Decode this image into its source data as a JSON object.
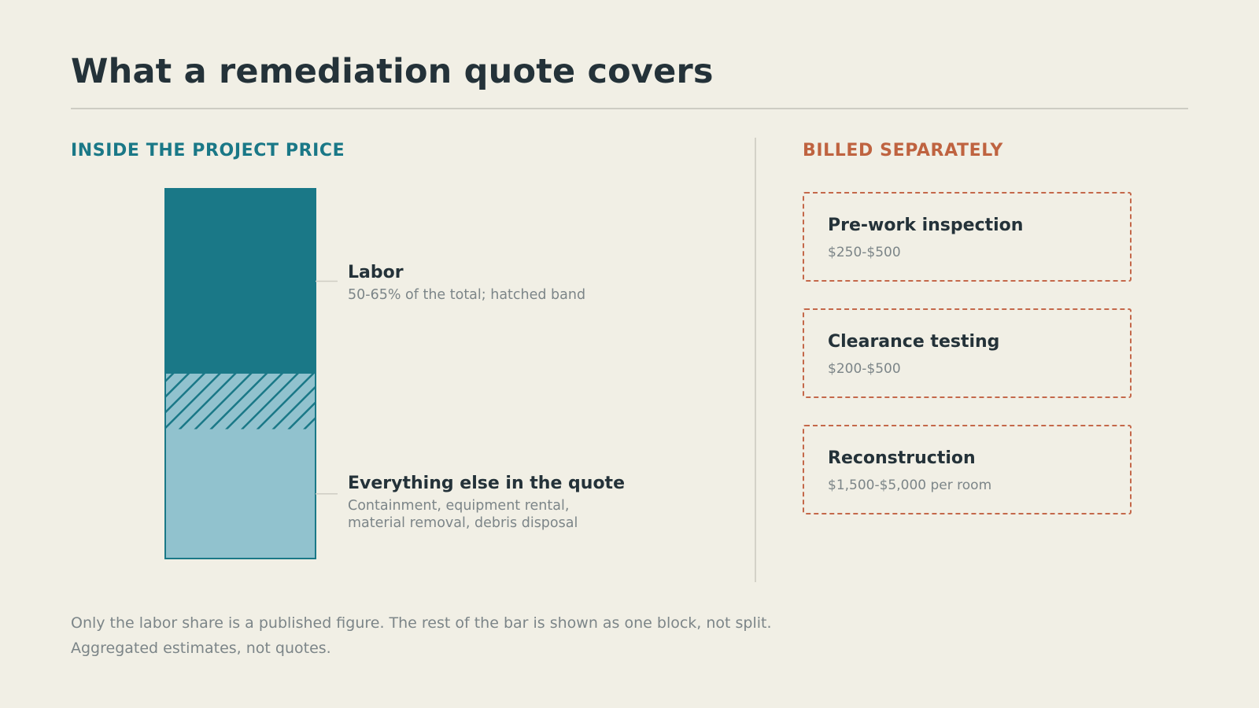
{
  "title": "What a remediation quote covers",
  "inside": {
    "heading": "INSIDE THE PROJECT PRICE",
    "segments": [
      {
        "name": "Labor",
        "description": "50-65% of the total; hatched band",
        "share_min_pct": 50,
        "share_max_pct": 65,
        "color": "#1a7887"
      },
      {
        "name": "Everything else in the quote",
        "description_lines": [
          "Containment, equipment rental,",
          "material removal, debris disposal"
        ],
        "color": "#91c2ce"
      }
    ]
  },
  "separate": {
    "heading": "BILLED SEPARATELY",
    "items": [
      {
        "name": "Pre-work inspection",
        "range": "$250-$500"
      },
      {
        "name": "Clearance testing",
        "range": "$200-$500"
      },
      {
        "name": "Reconstruction",
        "range": "$1,500-$5,000 per room"
      }
    ]
  },
  "footnotes": [
    "Only the labor share is a published figure. The rest of the bar is shown as one block, not split.",
    "Aggregated estimates, not quotes."
  ],
  "colors": {
    "background": "#f1efe5",
    "title_text": "#243239",
    "inside_accent": "#1a7887",
    "separate_accent": "#bf6340",
    "muted_text": "#7c8588"
  }
}
